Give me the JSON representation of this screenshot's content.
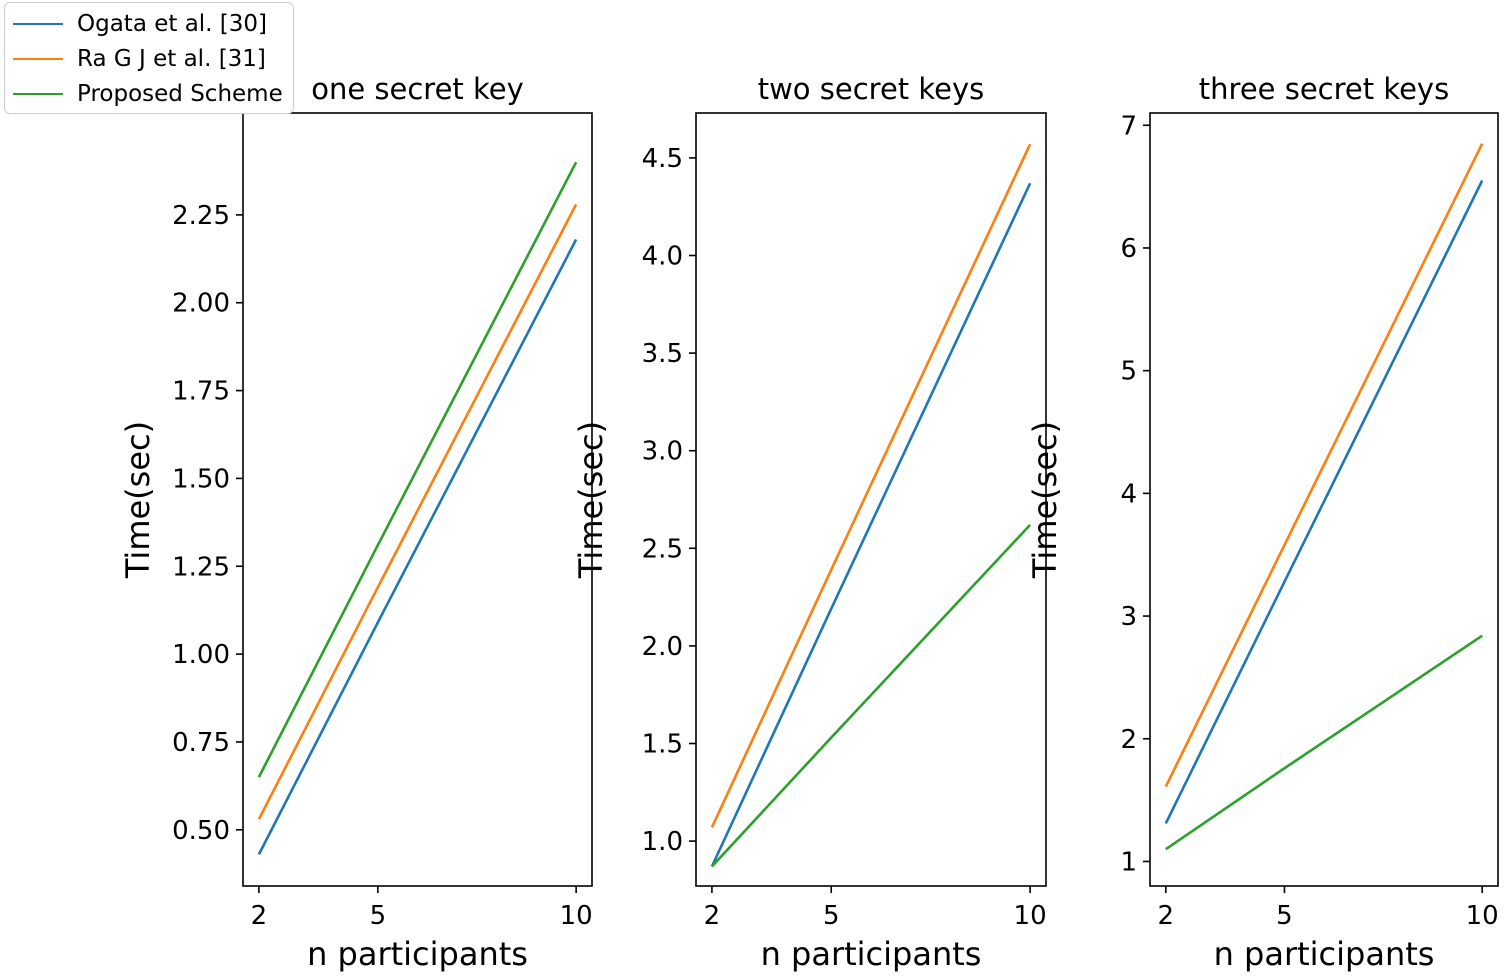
{
  "chart_data": [
    {
      "type": "line",
      "title": "one secret key",
      "xlabel": "n participants",
      "ylabel": "Time(sec)",
      "x": [
        2,
        5,
        10
      ],
      "ylim": [
        0.34,
        2.54
      ],
      "yticks": [
        0.5,
        0.75,
        1.0,
        1.25,
        1.5,
        1.75,
        2.0,
        2.25
      ],
      "ytick_labels": [
        "0.50",
        "0.75",
        "1.00",
        "1.25",
        "1.50",
        "1.75",
        "2.00",
        "2.25"
      ],
      "series": [
        {
          "name": "Ogata et al. [30]",
          "values": [
            0.43,
            1.09,
            2.18
          ]
        },
        {
          "name": "Ra G J et al. [31]",
          "values": [
            0.53,
            1.19,
            2.28
          ]
        },
        {
          "name": "Proposed Scheme",
          "values": [
            0.65,
            1.31,
            2.4
          ]
        }
      ]
    },
    {
      "type": "line",
      "title": "two secret keys",
      "xlabel": "n participants",
      "ylabel": "Time(sec)",
      "x": [
        2,
        5,
        10
      ],
      "ylim": [
        0.77,
        4.73
      ],
      "yticks": [
        1.0,
        1.5,
        2.0,
        2.5,
        3.0,
        3.5,
        4.0,
        4.5
      ],
      "ytick_labels": [
        "1.0",
        "1.5",
        "2.0",
        "2.5",
        "3.0",
        "3.5",
        "4.0",
        "4.5"
      ],
      "series": [
        {
          "name": "Ogata et al. [30]",
          "values": [
            0.87,
            2.19,
            4.37
          ]
        },
        {
          "name": "Ra G J et al. [31]",
          "values": [
            1.07,
            2.39,
            4.57
          ]
        },
        {
          "name": "Proposed Scheme",
          "values": [
            0.87,
            1.53,
            2.62
          ]
        }
      ]
    },
    {
      "type": "line",
      "title": "three secret keys",
      "xlabel": "n participants",
      "ylabel": "Time(sec)",
      "x": [
        2,
        5,
        10
      ],
      "ylim": [
        0.8,
        7.1
      ],
      "yticks": [
        1,
        2,
        3,
        4,
        5,
        6,
        7
      ],
      "ytick_labels": [
        "1",
        "2",
        "3",
        "4",
        "5",
        "6",
        "7"
      ],
      "series": [
        {
          "name": "Ogata et al. [30]",
          "values": [
            1.31,
            3.28,
            6.55
          ]
        },
        {
          "name": "Ra G J et al. [31]",
          "values": [
            1.61,
            3.58,
            6.85
          ]
        },
        {
          "name": "Proposed Scheme",
          "values": [
            1.1,
            1.76,
            2.84
          ]
        }
      ]
    }
  ],
  "xticks": [
    2,
    5,
    10
  ],
  "legend": {
    "placement": "top-left",
    "items": [
      {
        "label": "Ogata et al. [30]",
        "color": "#1f77b4"
      },
      {
        "label": "Ra G J et al. [31]",
        "color": "#ff7f0e"
      },
      {
        "label": "Proposed Scheme",
        "color": "#2ca02c"
      }
    ]
  },
  "colors": [
    "#1f77b4",
    "#ff7f0e",
    "#2ca02c"
  ]
}
